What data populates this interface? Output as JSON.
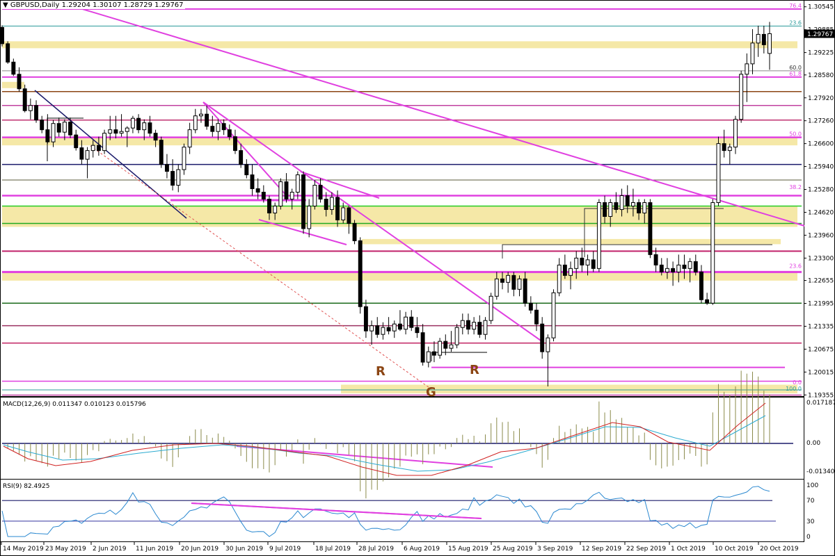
{
  "window": {
    "title": "GBPUSD,Daily",
    "ohlc": "1.29204 1.30107 1.28729 1.29767",
    "current_price": "1.29767"
  },
  "chart_data": [
    {
      "type": "candlestick",
      "symbol": "GBPUSD",
      "timeframe": "Daily",
      "y_ticks": [
        "1.30545",
        "1.29885",
        "1.29225",
        "1.28580",
        "1.27920",
        "1.27260",
        "1.26600",
        "1.25940",
        "1.25280",
        "1.24620",
        "1.23960",
        "1.23300",
        "1.22655",
        "1.21995",
        "1.21335",
        "1.20675",
        "1.20015",
        "1.19355"
      ],
      "ylim": [
        1.193,
        1.3064
      ],
      "x_ticks": [
        "14 May 2019",
        "23 May 2019",
        "2 Jun 2019",
        "11 Jun 2019",
        "20 Jun 2019",
        "30 Jun 2019",
        "9 Jul 2019",
        "18 Jul 2019",
        "28 Jul 2019",
        "6 Aug 2019",
        "15 Aug 2019",
        "25 Aug 2019",
        "3 Sep 2019",
        "12 Sep 2019",
        "22 Sep 2019",
        "1 Oct 2019",
        "10 Oct 2019",
        "20 Oct 2019"
      ],
      "fib_labels": [
        {
          "label": "76.4",
          "price": 1.3048,
          "color": "#e040e0"
        },
        {
          "label": "23.6",
          "price": 1.2999,
          "color": "#2a9a9a"
        },
        {
          "label": "60.0",
          "price": 1.287,
          "color": "#333333"
        },
        {
          "label": "61.8",
          "price": 1.2852,
          "color": "#e040e0"
        },
        {
          "label": "50.0",
          "price": 1.2678,
          "color": "#e040e0"
        },
        {
          "label": "38.2",
          "price": 1.2525,
          "color": "#e040e0"
        },
        {
          "label": "23.6",
          "price": 1.2298,
          "color": "#e040e0"
        },
        {
          "label": "0.0",
          "price": 1.1962,
          "color": "#e040e0"
        },
        {
          "label": "100.0",
          "price": 1.1944,
          "color": "#2a9a9a"
        }
      ],
      "annotations": [
        "R",
        "R",
        "G"
      ],
      "candles": [
        {
          "o": 1.2995,
          "h": 1.3001,
          "l": 1.294,
          "c": 1.2948
        },
        {
          "o": 1.2948,
          "h": 1.2955,
          "l": 1.289,
          "c": 1.2895
        },
        {
          "o": 1.2895,
          "h": 1.2905,
          "l": 1.2855,
          "c": 1.286
        },
        {
          "o": 1.286,
          "h": 1.288,
          "l": 1.281,
          "c": 1.2818
        },
        {
          "o": 1.2818,
          "h": 1.283,
          "l": 1.275,
          "c": 1.2755
        },
        {
          "o": 1.2755,
          "h": 1.279,
          "l": 1.273,
          "c": 1.277
        },
        {
          "o": 1.277,
          "h": 1.2785,
          "l": 1.272,
          "c": 1.2728
        },
        {
          "o": 1.2728,
          "h": 1.274,
          "l": 1.269,
          "c": 1.27
        },
        {
          "o": 1.27,
          "h": 1.2745,
          "l": 1.266,
          "c": 1.2665
        },
        {
          "o": 1.2665,
          "h": 1.2728,
          "l": 1.265,
          "c": 1.2718
        },
        {
          "o": 1.2718,
          "h": 1.2735,
          "l": 1.268,
          "c": 1.2693
        },
        {
          "o": 1.2693,
          "h": 1.273,
          "l": 1.267,
          "c": 1.2722
        },
        {
          "o": 1.2722,
          "h": 1.2735,
          "l": 1.2676,
          "c": 1.2685
        },
        {
          "o": 1.2685,
          "h": 1.27,
          "l": 1.264,
          "c": 1.2648
        },
        {
          "o": 1.2648,
          "h": 1.267,
          "l": 1.26,
          "c": 1.2615
        },
        {
          "o": 1.2615,
          "h": 1.265,
          "l": 1.256,
          "c": 1.264
        },
        {
          "o": 1.264,
          "h": 1.267,
          "l": 1.262,
          "c": 1.2655
        },
        {
          "o": 1.2655,
          "h": 1.268,
          "l": 1.2625,
          "c": 1.264
        },
        {
          "o": 1.264,
          "h": 1.27,
          "l": 1.263,
          "c": 1.269
        },
        {
          "o": 1.269,
          "h": 1.274,
          "l": 1.267,
          "c": 1.27
        },
        {
          "o": 1.27,
          "h": 1.274,
          "l": 1.2675,
          "c": 1.269
        },
        {
          "o": 1.269,
          "h": 1.2745,
          "l": 1.268,
          "c": 1.2695
        },
        {
          "o": 1.2695,
          "h": 1.271,
          "l": 1.265,
          "c": 1.2705
        },
        {
          "o": 1.2705,
          "h": 1.274,
          "l": 1.269,
          "c": 1.2733
        },
        {
          "o": 1.2733,
          "h": 1.2745,
          "l": 1.269,
          "c": 1.27
        },
        {
          "o": 1.27,
          "h": 1.273,
          "l": 1.267,
          "c": 1.272
        },
        {
          "o": 1.272,
          "h": 1.274,
          "l": 1.268,
          "c": 1.269
        },
        {
          "o": 1.269,
          "h": 1.27,
          "l": 1.265,
          "c": 1.267
        },
        {
          "o": 1.267,
          "h": 1.268,
          "l": 1.259,
          "c": 1.26
        },
        {
          "o": 1.26,
          "h": 1.263,
          "l": 1.256,
          "c": 1.258
        },
        {
          "o": 1.258,
          "h": 1.2615,
          "l": 1.2525,
          "c": 1.254
        },
        {
          "o": 1.254,
          "h": 1.26,
          "l": 1.252,
          "c": 1.2585
        },
        {
          "o": 1.2585,
          "h": 1.266,
          "l": 1.257,
          "c": 1.265
        },
        {
          "o": 1.265,
          "h": 1.272,
          "l": 1.263,
          "c": 1.27
        },
        {
          "o": 1.27,
          "h": 1.276,
          "l": 1.269,
          "c": 1.274
        },
        {
          "o": 1.274,
          "h": 1.276,
          "l": 1.272,
          "c": 1.2745
        },
        {
          "o": 1.2745,
          "h": 1.277,
          "l": 1.27,
          "c": 1.271
        },
        {
          "o": 1.271,
          "h": 1.274,
          "l": 1.268,
          "c": 1.2695
        },
        {
          "o": 1.2695,
          "h": 1.273,
          "l": 1.267,
          "c": 1.2718
        },
        {
          "o": 1.2718,
          "h": 1.273,
          "l": 1.2685,
          "c": 1.27
        },
        {
          "o": 1.27,
          "h": 1.2715,
          "l": 1.267,
          "c": 1.268
        },
        {
          "o": 1.268,
          "h": 1.27,
          "l": 1.263,
          "c": 1.264
        },
        {
          "o": 1.264,
          "h": 1.266,
          "l": 1.259,
          "c": 1.26
        },
        {
          "o": 1.26,
          "h": 1.2615,
          "l": 1.256,
          "c": 1.257
        },
        {
          "o": 1.257,
          "h": 1.26,
          "l": 1.251,
          "c": 1.253
        },
        {
          "o": 1.253,
          "h": 1.256,
          "l": 1.25,
          "c": 1.252
        },
        {
          "o": 1.252,
          "h": 1.254,
          "l": 1.249,
          "c": 1.25
        },
        {
          "o": 1.25,
          "h": 1.251,
          "l": 1.244,
          "c": 1.246
        },
        {
          "o": 1.246,
          "h": 1.249,
          "l": 1.244,
          "c": 1.248
        },
        {
          "o": 1.248,
          "h": 1.256,
          "l": 1.247,
          "c": 1.255
        },
        {
          "o": 1.255,
          "h": 1.2575,
          "l": 1.249,
          "c": 1.25
        },
        {
          "o": 1.25,
          "h": 1.253,
          "l": 1.247,
          "c": 1.252
        },
        {
          "o": 1.252,
          "h": 1.258,
          "l": 1.25,
          "c": 1.257
        },
        {
          "o": 1.257,
          "h": 1.258,
          "l": 1.24,
          "c": 1.2415
        },
        {
          "o": 1.2415,
          "h": 1.25,
          "l": 1.239,
          "c": 1.248
        },
        {
          "o": 1.248,
          "h": 1.2555,
          "l": 1.247,
          "c": 1.254
        },
        {
          "o": 1.254,
          "h": 1.256,
          "l": 1.249,
          "c": 1.25
        },
        {
          "o": 1.25,
          "h": 1.252,
          "l": 1.245,
          "c": 1.247
        },
        {
          "o": 1.247,
          "h": 1.252,
          "l": 1.2455,
          "c": 1.2505
        },
        {
          "o": 1.2505,
          "h": 1.2525,
          "l": 1.242,
          "c": 1.244
        },
        {
          "o": 1.244,
          "h": 1.249,
          "l": 1.243,
          "c": 1.2475
        },
        {
          "o": 1.2475,
          "h": 1.248,
          "l": 1.24,
          "c": 1.243
        },
        {
          "o": 1.243,
          "h": 1.244,
          "l": 1.237,
          "c": 1.238
        },
        {
          "o": 1.238,
          "h": 1.239,
          "l": 1.217,
          "c": 1.219
        },
        {
          "o": 1.219,
          "h": 1.221,
          "l": 1.21,
          "c": 1.212
        },
        {
          "o": 1.212,
          "h": 1.215,
          "l": 1.208,
          "c": 1.2135
        },
        {
          "o": 1.2135,
          "h": 1.216,
          "l": 1.21,
          "c": 1.211
        },
        {
          "o": 1.211,
          "h": 1.2145,
          "l": 1.2095,
          "c": 1.213
        },
        {
          "o": 1.213,
          "h": 1.216,
          "l": 1.211,
          "c": 1.212
        },
        {
          "o": 1.212,
          "h": 1.215,
          "l": 1.21,
          "c": 1.214
        },
        {
          "o": 1.214,
          "h": 1.218,
          "l": 1.212,
          "c": 1.2125
        },
        {
          "o": 1.2125,
          "h": 1.2175,
          "l": 1.211,
          "c": 1.216
        },
        {
          "o": 1.216,
          "h": 1.218,
          "l": 1.212,
          "c": 1.213
        },
        {
          "o": 1.213,
          "h": 1.216,
          "l": 1.21,
          "c": 1.2115
        },
        {
          "o": 1.2115,
          "h": 1.214,
          "l": 1.202,
          "c": 1.203
        },
        {
          "o": 1.203,
          "h": 1.2075,
          "l": 1.2015,
          "c": 1.206
        },
        {
          "o": 1.206,
          "h": 1.209,
          "l": 1.203,
          "c": 1.205
        },
        {
          "o": 1.205,
          "h": 1.21,
          "l": 1.204,
          "c": 1.209
        },
        {
          "o": 1.209,
          "h": 1.211,
          "l": 1.205,
          "c": 1.207
        },
        {
          "o": 1.207,
          "h": 1.212,
          "l": 1.206,
          "c": 1.208
        },
        {
          "o": 1.208,
          "h": 1.214,
          "l": 1.207,
          "c": 1.213
        },
        {
          "o": 1.213,
          "h": 1.217,
          "l": 1.211,
          "c": 1.215
        },
        {
          "o": 1.215,
          "h": 1.217,
          "l": 1.211,
          "c": 1.2125
        },
        {
          "o": 1.2125,
          "h": 1.216,
          "l": 1.211,
          "c": 1.2145
        },
        {
          "o": 1.2145,
          "h": 1.2165,
          "l": 1.21,
          "c": 1.211
        },
        {
          "o": 1.211,
          "h": 1.216,
          "l": 1.2095,
          "c": 1.215
        },
        {
          "o": 1.215,
          "h": 1.223,
          "l": 1.214,
          "c": 1.222
        },
        {
          "o": 1.222,
          "h": 1.229,
          "l": 1.221,
          "c": 1.227
        },
        {
          "o": 1.227,
          "h": 1.229,
          "l": 1.224,
          "c": 1.226
        },
        {
          "o": 1.226,
          "h": 1.229,
          "l": 1.223,
          "c": 1.228
        },
        {
          "o": 1.228,
          "h": 1.229,
          "l": 1.222,
          "c": 1.224
        },
        {
          "o": 1.224,
          "h": 1.228,
          "l": 1.222,
          "c": 1.227
        },
        {
          "o": 1.227,
          "h": 1.229,
          "l": 1.219,
          "c": 1.22
        },
        {
          "o": 1.22,
          "h": 1.222,
          "l": 1.217,
          "c": 1.218
        },
        {
          "o": 1.218,
          "h": 1.22,
          "l": 1.212,
          "c": 1.214
        },
        {
          "o": 1.214,
          "h": 1.216,
          "l": 1.204,
          "c": 1.206
        },
        {
          "o": 1.206,
          "h": 1.211,
          "l": 1.196,
          "c": 1.21
        },
        {
          "o": 1.21,
          "h": 1.224,
          "l": 1.209,
          "c": 1.223
        },
        {
          "o": 1.223,
          "h": 1.233,
          "l": 1.222,
          "c": 1.231
        },
        {
          "o": 1.231,
          "h": 1.234,
          "l": 1.227,
          "c": 1.228
        },
        {
          "o": 1.228,
          "h": 1.232,
          "l": 1.224,
          "c": 1.23
        },
        {
          "o": 1.23,
          "h": 1.235,
          "l": 1.227,
          "c": 1.233
        },
        {
          "o": 1.233,
          "h": 1.236,
          "l": 1.229,
          "c": 1.231
        },
        {
          "o": 1.231,
          "h": 1.234,
          "l": 1.228,
          "c": 1.2325
        },
        {
          "o": 1.2325,
          "h": 1.235,
          "l": 1.229,
          "c": 1.23
        },
        {
          "o": 1.23,
          "h": 1.25,
          "l": 1.229,
          "c": 1.249
        },
        {
          "o": 1.249,
          "h": 1.251,
          "l": 1.243,
          "c": 1.245
        },
        {
          "o": 1.245,
          "h": 1.25,
          "l": 1.242,
          "c": 1.249
        },
        {
          "o": 1.249,
          "h": 1.252,
          "l": 1.246,
          "c": 1.247
        },
        {
          "o": 1.247,
          "h": 1.253,
          "l": 1.245,
          "c": 1.251
        },
        {
          "o": 1.251,
          "h": 1.254,
          "l": 1.246,
          "c": 1.248
        },
        {
          "o": 1.248,
          "h": 1.253,
          "l": 1.245,
          "c": 1.249
        },
        {
          "o": 1.249,
          "h": 1.25,
          "l": 1.244,
          "c": 1.246
        },
        {
          "o": 1.246,
          "h": 1.25,
          "l": 1.243,
          "c": 1.249
        },
        {
          "o": 1.249,
          "h": 1.25,
          "l": 1.233,
          "c": 1.234
        },
        {
          "o": 1.234,
          "h": 1.236,
          "l": 1.229,
          "c": 1.231
        },
        {
          "o": 1.231,
          "h": 1.233,
          "l": 1.228,
          "c": 1.229
        },
        {
          "o": 1.229,
          "h": 1.233,
          "l": 1.227,
          "c": 1.23
        },
        {
          "o": 1.23,
          "h": 1.232,
          "l": 1.225,
          "c": 1.229
        },
        {
          "o": 1.229,
          "h": 1.234,
          "l": 1.226,
          "c": 1.231
        },
        {
          "o": 1.231,
          "h": 1.234,
          "l": 1.227,
          "c": 1.23
        },
        {
          "o": 1.23,
          "h": 1.233,
          "l": 1.226,
          "c": 1.232
        },
        {
          "o": 1.232,
          "h": 1.234,
          "l": 1.228,
          "c": 1.229
        },
        {
          "o": 1.229,
          "h": 1.231,
          "l": 1.22,
          "c": 1.221
        },
        {
          "o": 1.221,
          "h": 1.223,
          "l": 1.2195,
          "c": 1.22
        },
        {
          "o": 1.22,
          "h": 1.25,
          "l": 1.2195,
          "c": 1.249
        },
        {
          "o": 1.249,
          "h": 1.268,
          "l": 1.248,
          "c": 1.266
        },
        {
          "o": 1.266,
          "h": 1.27,
          "l": 1.262,
          "c": 1.264
        },
        {
          "o": 1.264,
          "h": 1.266,
          "l": 1.26,
          "c": 1.265
        },
        {
          "o": 1.265,
          "h": 1.274,
          "l": 1.263,
          "c": 1.273
        },
        {
          "o": 1.273,
          "h": 1.287,
          "l": 1.272,
          "c": 1.286
        },
        {
          "o": 1.286,
          "h": 1.292,
          "l": 1.278,
          "c": 1.289
        },
        {
          "o": 1.289,
          "h": 1.299,
          "l": 1.286,
          "c": 1.295
        },
        {
          "o": 1.295,
          "h": 1.3,
          "l": 1.291,
          "c": 1.2975
        },
        {
          "o": 1.2975,
          "h": 1.3,
          "l": 1.292,
          "c": 1.2945
        },
        {
          "o": 1.292,
          "h": 1.3011,
          "l": 1.2873,
          "c": 1.2977
        }
      ],
      "macd": {
        "label": "MACD(12,26,9) 0.011347 0.010123 0.015796",
        "ticks": [
          "0.017187",
          "0.00",
          "-0.013403"
        ]
      },
      "rsi": {
        "label": "RSI(9) 82.4925",
        "ticks": [
          "100",
          "70",
          "30",
          "0"
        ]
      }
    }
  ]
}
